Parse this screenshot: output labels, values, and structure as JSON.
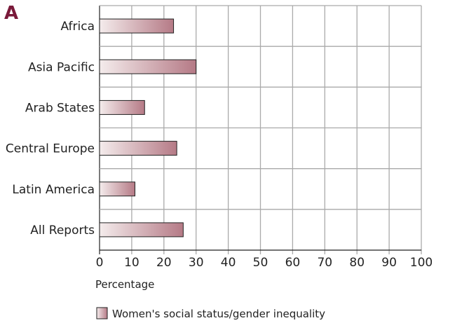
{
  "panel_label": "A",
  "chart_data": {
    "type": "bar",
    "orientation": "horizontal",
    "categories": [
      "Africa",
      "Asia Pacific",
      "Arab States",
      "Central Europe",
      "Latin America",
      "All Reports"
    ],
    "series": [
      {
        "name": "Women's social status/gender inequality",
        "values": [
          23,
          30,
          14,
          24,
          11,
          26
        ]
      }
    ],
    "xlabel": "Percentage",
    "xlim": [
      0,
      100
    ],
    "xticks": [
      0,
      10,
      20,
      30,
      40,
      50,
      60,
      70,
      80,
      90,
      100
    ],
    "grid": true,
    "legend_position": "bottom-left",
    "colors": {
      "bar_start": "#f4ecec",
      "bar_end": "#b57a86",
      "bar_stroke": "#222222",
      "grid": "#aaaaaa",
      "panel_letter": "#7a1a3a"
    }
  }
}
